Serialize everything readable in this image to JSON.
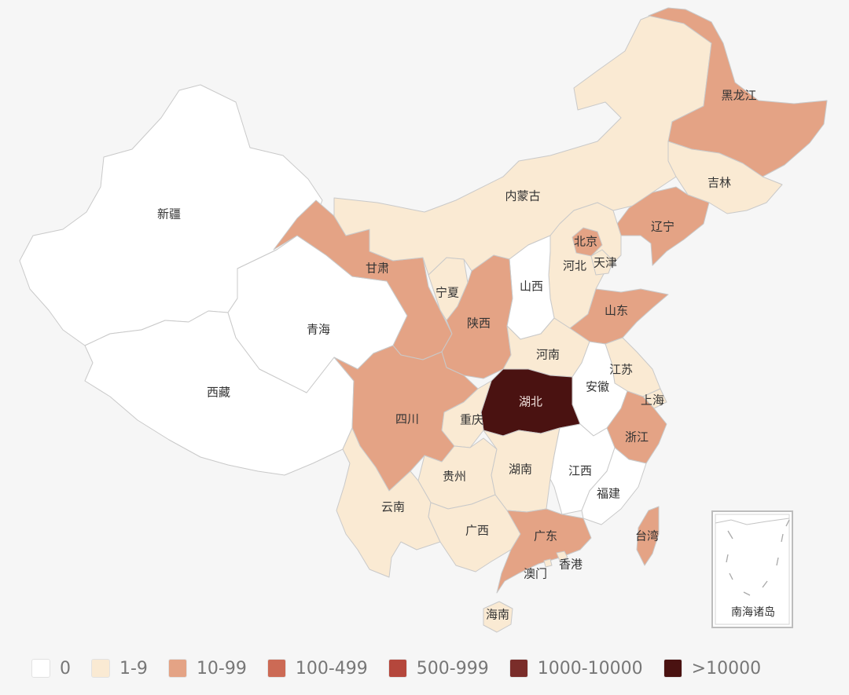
{
  "colors": {
    "c0": "#ffffff",
    "c1": "#faead3",
    "c2": "#e4a385",
    "c3": "#cc6a55",
    "c4": "#b5473c",
    "c5": "#7a2d2a",
    "c6": "#4a1211"
  },
  "provinces": [
    {
      "name": "新疆",
      "level": "c0"
    },
    {
      "name": "西藏",
      "level": "c0"
    },
    {
      "name": "青海",
      "level": "c0"
    },
    {
      "name": "甘肃",
      "level": "c2"
    },
    {
      "name": "宁夏",
      "level": "c1"
    },
    {
      "name": "内蒙古",
      "level": "c1"
    },
    {
      "name": "黑龙江",
      "level": "c2"
    },
    {
      "name": "吉林",
      "level": "c1"
    },
    {
      "name": "辽宁",
      "level": "c2"
    },
    {
      "name": "北京",
      "level": "c2"
    },
    {
      "name": "天津",
      "level": "c1"
    },
    {
      "name": "河北",
      "level": "c1"
    },
    {
      "name": "山西",
      "level": "c0"
    },
    {
      "name": "陕西",
      "level": "c2"
    },
    {
      "name": "山东",
      "level": "c2"
    },
    {
      "name": "河南",
      "level": "c1"
    },
    {
      "name": "江苏",
      "level": "c1"
    },
    {
      "name": "安徽",
      "level": "c0"
    },
    {
      "name": "上海",
      "level": "c1"
    },
    {
      "name": "湖北",
      "level": "c6"
    },
    {
      "name": "四川",
      "level": "c2"
    },
    {
      "name": "重庆",
      "level": "c1"
    },
    {
      "name": "浙江",
      "level": "c2"
    },
    {
      "name": "贵州",
      "level": "c1"
    },
    {
      "name": "湖南",
      "level": "c1"
    },
    {
      "name": "江西",
      "level": "c0"
    },
    {
      "name": "福建",
      "level": "c0"
    },
    {
      "name": "云南",
      "level": "c1"
    },
    {
      "name": "广西",
      "level": "c1"
    },
    {
      "name": "广东",
      "level": "c2"
    },
    {
      "name": "台湾",
      "level": "c2"
    },
    {
      "name": "香港",
      "level": "c1"
    },
    {
      "name": "澳门",
      "level": "c1"
    },
    {
      "name": "海南",
      "level": "c1"
    }
  ],
  "inset_label": "南海诸岛",
  "legend": [
    {
      "label": "0",
      "level": "c0"
    },
    {
      "label": "1-9",
      "level": "c1"
    },
    {
      "label": "10-99",
      "level": "c2"
    },
    {
      "label": "100-499",
      "level": "c3"
    },
    {
      "label": "500-999",
      "level": "c4"
    },
    {
      "label": "1000-10000",
      "level": "c5"
    },
    {
      "label": ">10000",
      "level": "c6"
    }
  ]
}
